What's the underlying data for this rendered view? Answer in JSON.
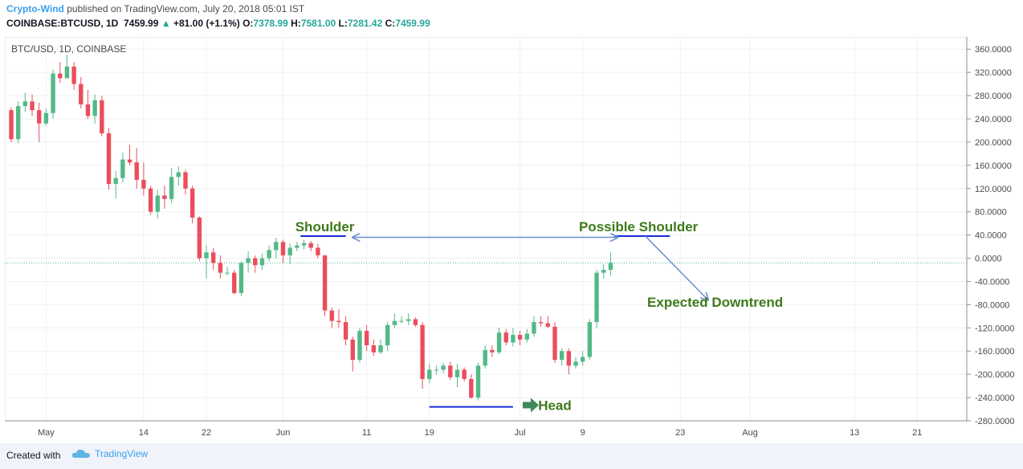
{
  "header": {
    "author": "Crypto-Wind",
    "published_text": " published on TradingView.com, July 20, 2018 05:01 IST",
    "symbol": "COINBASE:BTCUSD, 1D",
    "last": "7459.99",
    "change": "+81.00 (+1.1%)",
    "o_label": "O:",
    "o_value": "7378.99",
    "h_label": "H:",
    "h_value": "7581.00",
    "l_label": "L:",
    "l_value": "7281.42",
    "c_label": "C:",
    "c_value": "7459.99"
  },
  "footer": {
    "created_with": "Created with",
    "brand": "TradingView"
  },
  "colors": {
    "up": "#53b987",
    "down": "#eb4d5c",
    "annotation_text": "#3e7a1a",
    "arrow": "#6a8fd0",
    "line": "#1a2fd8"
  },
  "chart_data": {
    "type": "candlestick",
    "title": "BTC/USD, 1D, COINBASE",
    "ylim": [
      -280,
      370
    ],
    "yticks": [
      "360.0000",
      "320.0000",
      "280.0000",
      "240.0000",
      "200.0000",
      "160.0000",
      "120.0000",
      "80.0000",
      "40.0000",
      "0.0000",
      "-40.0000",
      "-80.0000",
      "-120.0000",
      "-160.0000",
      "-200.0000",
      "-240.0000",
      "-280.0000"
    ],
    "ytick_values": [
      360,
      320,
      280,
      240,
      200,
      160,
      120,
      80,
      40,
      0,
      -40,
      -80,
      -120,
      -160,
      -200,
      -240,
      -280
    ],
    "x_range": [
      0,
      106
    ],
    "xtick_labels": [
      "May",
      "14",
      "22",
      "Jun",
      "11",
      "19",
      "Jul",
      "9",
      "23",
      "Aug",
      "13",
      "21"
    ],
    "xtick_index": [
      5,
      19,
      28,
      39,
      51,
      60,
      73,
      82,
      96,
      106,
      121,
      130
    ],
    "candles": [
      [
        255,
        205,
        260,
        200
      ],
      [
        205,
        262,
        270,
        198
      ],
      [
        262,
        270,
        285,
        252
      ],
      [
        270,
        255,
        282,
        245
      ],
      [
        255,
        232,
        268,
        200
      ],
      [
        232,
        250,
        258,
        228
      ],
      [
        250,
        318,
        325,
        240
      ],
      [
        318,
        310,
        338,
        302
      ],
      [
        310,
        330,
        350,
        318
      ],
      [
        330,
        300,
        338,
        290
      ],
      [
        300,
        265,
        312,
        258
      ],
      [
        265,
        245,
        290,
        240
      ],
      [
        245,
        272,
        282,
        232
      ],
      [
        272,
        215,
        280,
        210
      ],
      [
        215,
        128,
        224,
        118
      ],
      [
        128,
        138,
        150,
        103
      ],
      [
        138,
        170,
        182,
        130
      ],
      [
        170,
        165,
        195,
        160
      ],
      [
        165,
        135,
        190,
        120
      ],
      [
        135,
        120,
        165,
        108
      ],
      [
        120,
        80,
        125,
        75
      ],
      [
        80,
        108,
        118,
        68
      ],
      [
        108,
        102,
        125,
        85
      ],
      [
        102,
        140,
        155,
        95
      ],
      [
        140,
        148,
        158,
        125
      ],
      [
        148,
        120,
        152,
        110
      ],
      [
        120,
        70,
        125,
        60
      ],
      [
        70,
        0,
        72,
        -5
      ],
      [
        0,
        10,
        22,
        -35
      ],
      [
        10,
        -8,
        18,
        -20
      ],
      [
        -8,
        -25,
        5,
        -35
      ],
      [
        -25,
        -25,
        -15,
        -30
      ],
      [
        -25,
        -60,
        -20,
        -62
      ],
      [
        -60,
        -8,
        -5,
        -65
      ],
      [
        -8,
        0,
        12,
        -25
      ],
      [
        0,
        -12,
        5,
        -25
      ],
      [
        -12,
        0,
        8,
        -20
      ],
      [
        0,
        14,
        22,
        -5
      ],
      [
        14,
        28,
        35,
        0
      ],
      [
        28,
        5,
        32,
        -8
      ],
      [
        5,
        18,
        25,
        -10
      ],
      [
        18,
        22,
        28,
        12
      ],
      [
        22,
        26,
        32,
        15
      ],
      [
        26,
        18,
        30,
        12
      ],
      [
        18,
        5,
        25,
        0
      ],
      [
        5,
        -90,
        5,
        -100
      ],
      [
        -90,
        -108,
        -85,
        -120
      ],
      [
        -108,
        -110,
        -88,
        -120
      ],
      [
        -110,
        -140,
        -100,
        -150
      ],
      [
        -140,
        -175,
        -135,
        -195
      ],
      [
        -175,
        -125,
        -120,
        -180
      ],
      [
        -125,
        -150,
        -115,
        -160
      ],
      [
        -150,
        -162,
        -140,
        -168
      ],
      [
        -162,
        -150,
        -140,
        -165
      ],
      [
        -150,
        -115,
        -110,
        -160
      ],
      [
        -115,
        -108,
        -95,
        -120
      ],
      [
        -108,
        -108,
        -100,
        -112
      ],
      [
        -108,
        -105,
        -95,
        -115
      ],
      [
        -105,
        -115,
        -102,
        -118
      ],
      [
        -115,
        -208,
        -110,
        -225
      ],
      [
        -208,
        -192,
        -182,
        -215
      ],
      [
        -192,
        -192,
        -185,
        -200
      ],
      [
        -192,
        -185,
        -180,
        -198
      ],
      [
        -185,
        -205,
        -178,
        -210
      ],
      [
        -205,
        -192,
        -182,
        -222
      ],
      [
        -192,
        -208,
        -188,
        -212
      ],
      [
        -208,
        -240,
        -200,
        -242
      ],
      [
        -240,
        -185,
        -180,
        -245
      ],
      [
        -185,
        -158,
        -150,
        -190
      ],
      [
        -158,
        -162,
        -150,
        -170
      ],
      [
        -162,
        -128,
        -120,
        -165
      ],
      [
        -128,
        -145,
        -122,
        -150
      ],
      [
        -145,
        -132,
        -120,
        -152
      ],
      [
        -132,
        -140,
        -125,
        -150
      ],
      [
        -140,
        -130,
        -122,
        -145
      ],
      [
        -130,
        -110,
        -100,
        -135
      ],
      [
        -110,
        -112,
        -100,
        -118
      ],
      [
        -112,
        -118,
        -100,
        -120
      ],
      [
        -118,
        -175,
        -110,
        -180
      ],
      [
        -175,
        -160,
        -155,
        -185
      ],
      [
        -160,
        -185,
        -155,
        -200
      ],
      [
        -185,
        -178,
        -170,
        -190
      ],
      [
        -178,
        -170,
        -160,
        -185
      ],
      [
        -170,
        -110,
        -105,
        -175
      ],
      [
        -110,
        -25,
        -20,
        -120
      ],
      [
        -25,
        -20,
        -10,
        -35
      ],
      [
        -20,
        -8,
        10,
        -30
      ]
    ],
    "candle_start_index": 0,
    "last_value": -8,
    "annotations": [
      {
        "text": "Shoulder",
        "x": 45,
        "y": 55,
        "color": "#3e7a1a"
      },
      {
        "text": "Possible Shoulder",
        "x": 90,
        "y": 55,
        "color": "#3e7a1a"
      },
      {
        "text": "Expected Downtrend",
        "x": 101,
        "y": -75,
        "color": "#3e7a1a"
      },
      {
        "text": "Head",
        "x": 78,
        "y": -253,
        "color": "#3e7a1a"
      }
    ],
    "lines": [
      {
        "name": "shoulder-line",
        "x1": 41.5,
        "y1": 38,
        "x2": 48,
        "y2": 38
      },
      {
        "name": "possible-shoulder-line",
        "x1": 86.5,
        "y1": 38,
        "x2": 94.5,
        "y2": 38
      },
      {
        "name": "head-line",
        "x1": 60,
        "y1": -256,
        "x2": 72,
        "y2": -256
      }
    ],
    "arrows": [
      {
        "name": "neckline-arrow",
        "x1": 49,
        "y1": 36,
        "x2": 87,
        "y2": 36,
        "double": true
      },
      {
        "name": "downtrend-arrow",
        "x1": 91,
        "y1": 38,
        "x2": 100,
        "y2": -72,
        "double": false
      }
    ]
  }
}
